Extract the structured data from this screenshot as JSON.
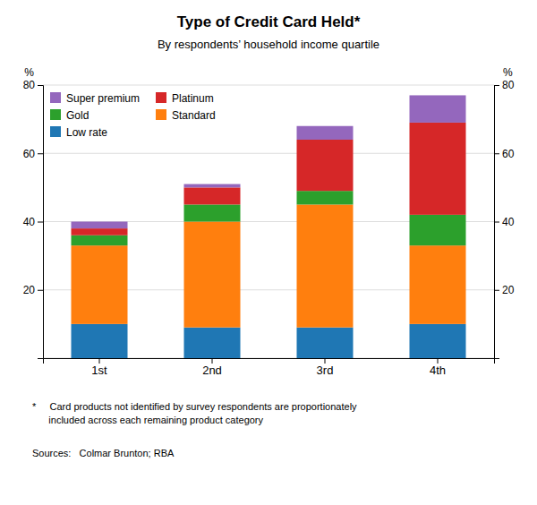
{
  "chart_data": {
    "type": "bar",
    "stacked": true,
    "title": "Type of Credit Card Held*",
    "subtitle": "By respondents’ household income quartile",
    "categories": [
      "1st",
      "2nd",
      "3rd",
      "4th"
    ],
    "series": [
      {
        "name": "Low rate",
        "values": [
          10,
          9,
          9,
          10
        ]
      },
      {
        "name": "Standard",
        "values": [
          23,
          31,
          36,
          23
        ]
      },
      {
        "name": "Gold",
        "values": [
          3,
          5,
          4,
          9
        ]
      },
      {
        "name": "Platinum",
        "values": [
          2,
          5,
          15,
          27
        ]
      },
      {
        "name": "Super premium",
        "values": [
          2,
          1,
          4,
          8
        ]
      }
    ],
    "ylim": [
      0,
      80
    ],
    "yticks": [
      {
        "value": 0,
        "label": null
      },
      20,
      40,
      60,
      80
    ],
    "y2lim": [
      0,
      80
    ],
    "y2ticks": [
      {
        "value": 0,
        "label": null
      },
      20,
      40,
      60,
      80
    ],
    "ylabel": "%",
    "y2label": "%",
    "grid": true,
    "legend": "upper left",
    "footnote": "*     Card products not identified by survey respondents are proportionately\n      included across each remaining product category",
    "sources": "Sources:   Colmar Brunton; RBA"
  }
}
